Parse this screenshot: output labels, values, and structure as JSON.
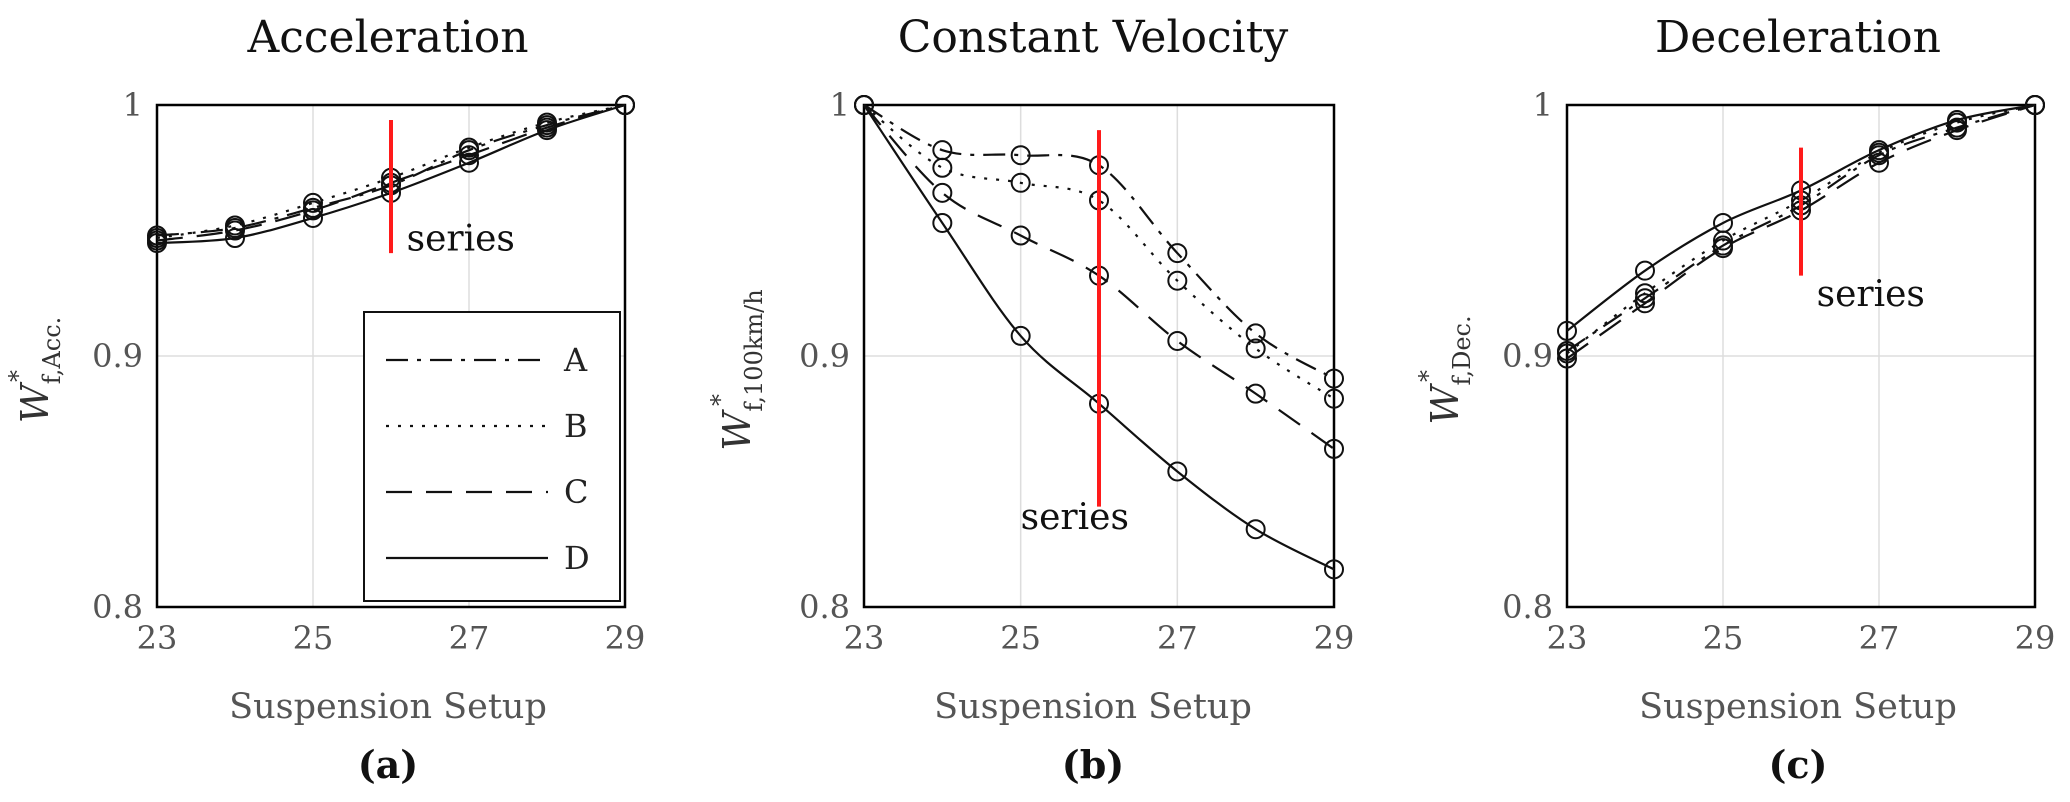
{
  "figure": {
    "panel_labels": [
      "(a)",
      "(b)",
      "(c)"
    ]
  },
  "chart_data": [
    {
      "type": "line",
      "title": "Acceleration",
      "xlabel": "Suspension Setup",
      "ylabel": {
        "main": "W",
        "sup": "*",
        "sub": "f,Acc."
      },
      "panel_label": "(a)",
      "xlim": [
        23,
        29
      ],
      "ylim": [
        0.8,
        1.0
      ],
      "xticks": [
        "23",
        "25",
        "27",
        "29"
      ],
      "yticks": [
        "0.8",
        "0.9",
        "1"
      ],
      "grid": true,
      "x": [
        23,
        24,
        25,
        26,
        27,
        28,
        29
      ],
      "series": [
        {
          "name": "A",
          "dash": "dashdot",
          "values": [
            0.948,
            0.951,
            0.959,
            0.968,
            0.982,
            0.992,
            1.0
          ]
        },
        {
          "name": "B",
          "dash": "dotted",
          "values": [
            0.947,
            0.952,
            0.961,
            0.971,
            0.983,
            0.993,
            1.0
          ]
        },
        {
          "name": "C",
          "dash": "dashed",
          "values": [
            0.946,
            0.95,
            0.958,
            0.969,
            0.98,
            0.991,
            1.0
          ]
        },
        {
          "name": "D",
          "dash": "solid",
          "values": [
            0.945,
            0.947,
            0.955,
            0.965,
            0.977,
            0.99,
            1.0
          ]
        }
      ],
      "annotation": {
        "text": "series",
        "x": 26,
        "y_range": [
          0.941,
          0.994
        ],
        "text_pos": [
          26.2,
          0.942
        ]
      },
      "legend": {
        "position": "bottom-right",
        "entries": [
          "A",
          "B",
          "C",
          "D"
        ]
      }
    },
    {
      "type": "line",
      "title": "Constant Velocity",
      "xlabel": "Suspension Setup",
      "ylabel": {
        "main": "W",
        "sup": "*",
        "sub": "f,100km/h"
      },
      "panel_label": "(b)",
      "xlim": [
        23,
        29
      ],
      "ylim": [
        0.8,
        1.0
      ],
      "xticks": [
        "23",
        "25",
        "27",
        "29"
      ],
      "yticks": [
        "0.8",
        "0.9",
        "1"
      ],
      "grid": true,
      "x": [
        23,
        24,
        25,
        26,
        27,
        28,
        29
      ],
      "series": [
        {
          "name": "A",
          "dash": "dashdot",
          "values": [
            1.0,
            0.982,
            0.98,
            0.976,
            0.941,
            0.909,
            0.891
          ]
        },
        {
          "name": "B",
          "dash": "dotted",
          "values": [
            1.0,
            0.975,
            0.969,
            0.962,
            0.93,
            0.903,
            0.883
          ]
        },
        {
          "name": "C",
          "dash": "dashed",
          "values": [
            1.0,
            0.965,
            0.948,
            0.932,
            0.906,
            0.885,
            0.863
          ]
        },
        {
          "name": "D",
          "dash": "solid",
          "values": [
            1.0,
            0.953,
            0.908,
            0.881,
            0.854,
            0.831,
            0.815
          ]
        }
      ],
      "annotation": {
        "text": "series",
        "x": 26,
        "y_range": [
          0.84,
          0.99
        ],
        "text_pos": [
          25.0,
          0.831
        ]
      }
    },
    {
      "type": "line",
      "title": "Deceleration",
      "xlabel": "Suspension Setup",
      "ylabel": {
        "main": "W",
        "sup": "*",
        "sub": "f,Dec."
      },
      "panel_label": "(c)",
      "xlim": [
        23,
        29
      ],
      "ylim": [
        0.8,
        1.0
      ],
      "xticks": [
        "23",
        "25",
        "27",
        "29"
      ],
      "yticks": [
        "0.8",
        "0.9",
        "1"
      ],
      "grid": true,
      "x": [
        23,
        24,
        25,
        26,
        27,
        28,
        29
      ],
      "series": [
        {
          "name": "A",
          "dash": "dashdot",
          "values": [
            0.902,
            0.923,
            0.944,
            0.96,
            0.98,
            0.991,
            1.0
          ]
        },
        {
          "name": "B",
          "dash": "dotted",
          "values": [
            0.901,
            0.925,
            0.946,
            0.962,
            0.981,
            0.993,
            1.0
          ]
        },
        {
          "name": "C",
          "dash": "dashed",
          "values": [
            0.899,
            0.921,
            0.943,
            0.958,
            0.977,
            0.99,
            1.0
          ]
        },
        {
          "name": "D",
          "dash": "solid",
          "values": [
            0.91,
            0.934,
            0.953,
            0.966,
            0.982,
            0.994,
            1.0
          ]
        }
      ],
      "annotation": {
        "text": "series",
        "x": 26,
        "y_range": [
          0.932,
          0.983
        ],
        "text_pos": [
          26.2,
          0.92
        ]
      }
    }
  ]
}
